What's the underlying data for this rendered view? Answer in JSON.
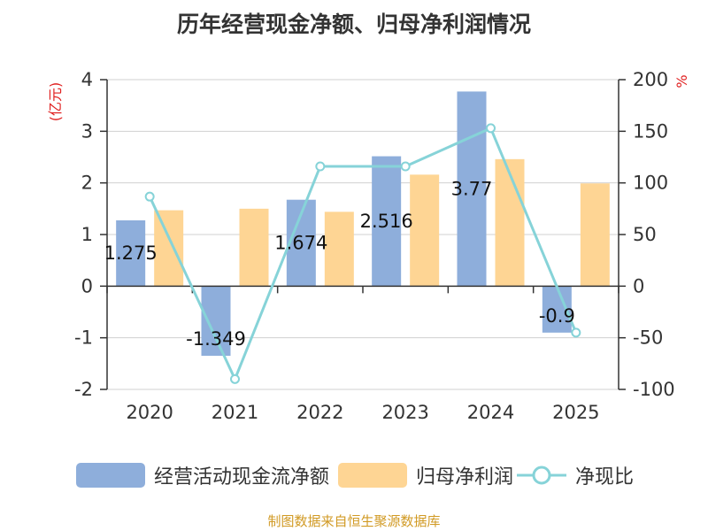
{
  "chart_data": {
    "type": "bar",
    "title": "历年经营现金净额、归母净利润情况",
    "categories": [
      "2020",
      "2021",
      "2022",
      "2023",
      "2024",
      "2025"
    ],
    "series": [
      {
        "name": "经营活动现金流净额",
        "type": "bar",
        "axis": "left",
        "color": "#8eaedb",
        "values": [
          1.275,
          -1.349,
          1.674,
          2.516,
          3.77,
          -0.9
        ],
        "labels": [
          "1.275",
          "-1.349",
          "1.674",
          "2.516",
          "3.77",
          "-0.9"
        ]
      },
      {
        "name": "归母净利润",
        "type": "bar",
        "axis": "left",
        "color": "#fed594",
        "values": [
          1.47,
          1.5,
          1.44,
          2.16,
          2.46,
          1.99
        ]
      },
      {
        "name": "净现比",
        "type": "line",
        "axis": "right",
        "color": "#86d3d8",
        "values": [
          86.7,
          -90,
          116,
          116,
          153,
          -45
        ]
      }
    ],
    "y_left": {
      "label": "(亿元)",
      "range": [
        -2,
        4
      ],
      "ticks": [
        "4",
        "3",
        "2",
        "1",
        "0",
        "-1",
        "-2"
      ],
      "tick_values": [
        4,
        3,
        2,
        1,
        0,
        -1,
        -2
      ]
    },
    "y_right": {
      "label": "%",
      "range": [
        -100,
        200
      ],
      "ticks": [
        "200",
        "150",
        "100",
        "50",
        "0",
        "-50",
        "-100"
      ],
      "tick_values": [
        200,
        150,
        100,
        50,
        0,
        -50,
        -100
      ]
    },
    "grid": true,
    "legend_position": "bottom"
  },
  "source": "制图数据来自恒生聚源数据库"
}
